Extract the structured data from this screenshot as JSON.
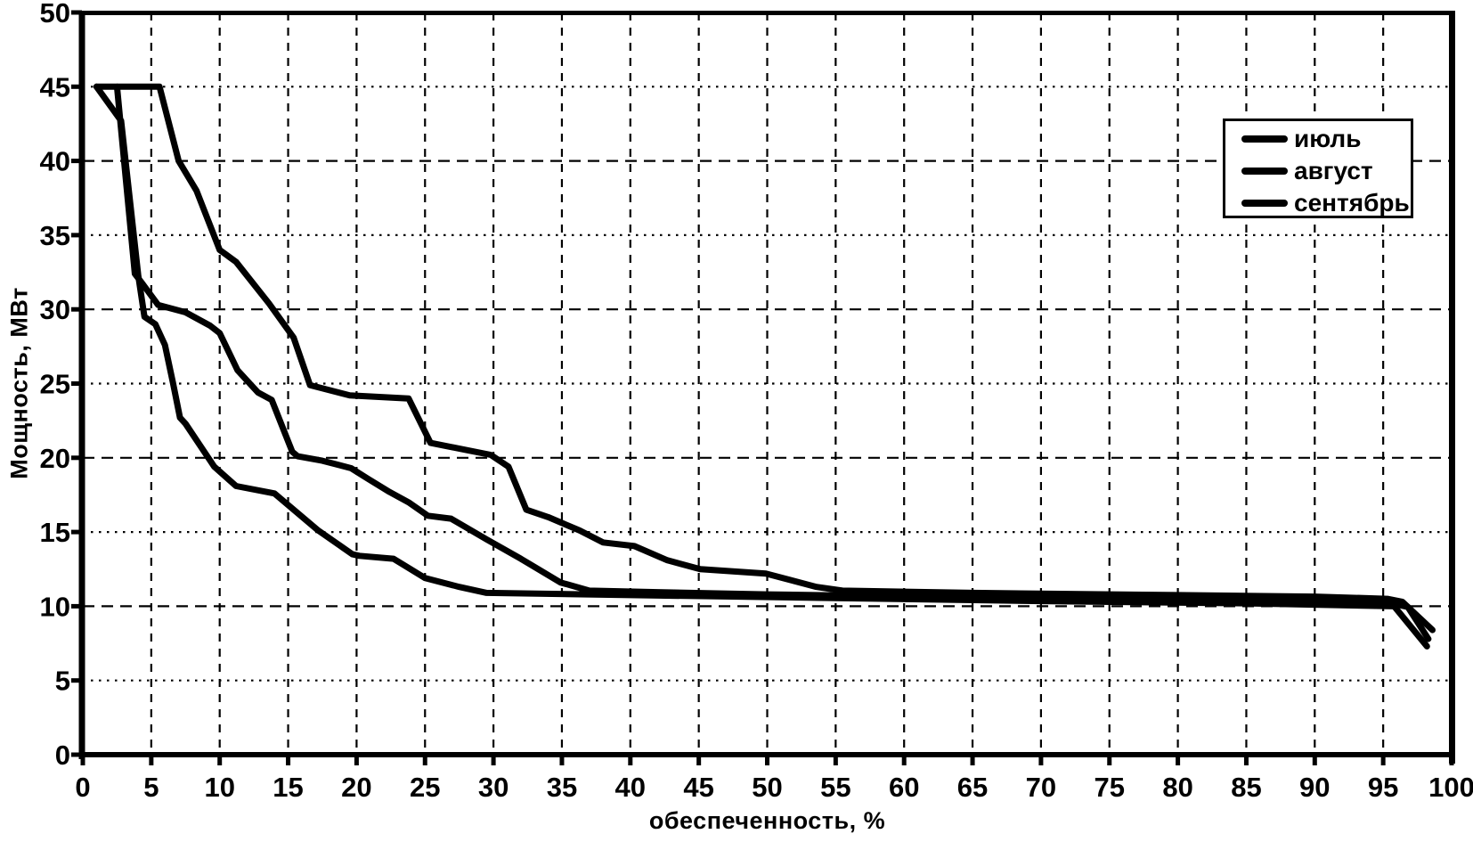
{
  "chart_data": {
    "type": "line",
    "title": "",
    "xlabel": "обеспеченность, %",
    "ylabel": "Мощность, МВт",
    "xlim": [
      0,
      100
    ],
    "ylim": [
      0,
      50
    ],
    "xticks": [
      0,
      5,
      10,
      15,
      20,
      25,
      30,
      35,
      40,
      45,
      50,
      55,
      60,
      65,
      70,
      75,
      80,
      85,
      90,
      95,
      100
    ],
    "yticks": [
      0,
      5,
      10,
      15,
      20,
      25,
      30,
      35,
      40,
      45,
      50
    ],
    "grid": true,
    "grid_style": "dashed-dotted black on white",
    "legend_position": "upper right",
    "line_color": "#000000",
    "background_color": "#ffffff",
    "series": [
      {
        "name": "июль",
        "key": "july",
        "points": [
          [
            1.0,
            45
          ],
          [
            5.6,
            45
          ],
          [
            7.0,
            40
          ],
          [
            8.3,
            38
          ],
          [
            10.0,
            34
          ],
          [
            11.2,
            33.2
          ],
          [
            13.6,
            30.4
          ],
          [
            15.4,
            28.1
          ],
          [
            16.6,
            24.9
          ],
          [
            19.5,
            24.2
          ],
          [
            23.8,
            24.0
          ],
          [
            25.4,
            21.0
          ],
          [
            29.8,
            20.2
          ],
          [
            31.1,
            19.4
          ],
          [
            32.4,
            16.5
          ],
          [
            34.0,
            16.0
          ],
          [
            36.3,
            15.1
          ],
          [
            38.0,
            14.3
          ],
          [
            40.3,
            14.05
          ],
          [
            42.7,
            13.1
          ],
          [
            45.1,
            12.5
          ],
          [
            49.9,
            12.2
          ],
          [
            53.6,
            11.3
          ],
          [
            55.5,
            11.05
          ],
          [
            65,
            10.9
          ],
          [
            80,
            10.75
          ],
          [
            90,
            10.65
          ],
          [
            95.3,
            10.5
          ],
          [
            96.4,
            10.3
          ],
          [
            98.6,
            8.4
          ]
        ]
      },
      {
        "name": "август",
        "key": "august",
        "points": [
          [
            2.5,
            45
          ],
          [
            3.8,
            32.4
          ],
          [
            4.3,
            31.8
          ],
          [
            5.5,
            30.3
          ],
          [
            7.5,
            29.8
          ],
          [
            9.3,
            28.9
          ],
          [
            10.0,
            28.4
          ],
          [
            11.3,
            25.9
          ],
          [
            12.8,
            24.4
          ],
          [
            13.8,
            23.9
          ],
          [
            15.3,
            20.4
          ],
          [
            15.7,
            20.1
          ],
          [
            17.5,
            19.8
          ],
          [
            19.6,
            19.3
          ],
          [
            20.8,
            18.6
          ],
          [
            22.4,
            17.7
          ],
          [
            23.8,
            17.0
          ],
          [
            25.2,
            16.1
          ],
          [
            26.9,
            15.9
          ],
          [
            29.5,
            14.5
          ],
          [
            32.0,
            13.2
          ],
          [
            34.9,
            11.6
          ],
          [
            37.0,
            11.05
          ],
          [
            42,
            10.95
          ],
          [
            50,
            10.8
          ],
          [
            65,
            10.6
          ],
          [
            80,
            10.45
          ],
          [
            95.6,
            10.2
          ],
          [
            96.8,
            9.95
          ],
          [
            98.3,
            7.8
          ]
        ]
      },
      {
        "name": "сентябрь",
        "key": "september",
        "points": [
          [
            1.0,
            45
          ],
          [
            2.8,
            42.7
          ],
          [
            4.05,
            32.3
          ],
          [
            4.5,
            29.5
          ],
          [
            5.3,
            29.0
          ],
          [
            6.0,
            27.6
          ],
          [
            6.6,
            25.0
          ],
          [
            7.1,
            22.7
          ],
          [
            7.5,
            22.3
          ],
          [
            9.6,
            19.4
          ],
          [
            11.2,
            18.1
          ],
          [
            14.0,
            17.6
          ],
          [
            17.2,
            15.1
          ],
          [
            19.7,
            13.5
          ],
          [
            20.2,
            13.4
          ],
          [
            22.7,
            13.2
          ],
          [
            25.0,
            11.9
          ],
          [
            27.5,
            11.3
          ],
          [
            29.5,
            10.9
          ],
          [
            40,
            10.75
          ],
          [
            55,
            10.55
          ],
          [
            70,
            10.35
          ],
          [
            85,
            10.2
          ],
          [
            95.8,
            10.0
          ],
          [
            98.2,
            7.3
          ]
        ]
      }
    ]
  }
}
